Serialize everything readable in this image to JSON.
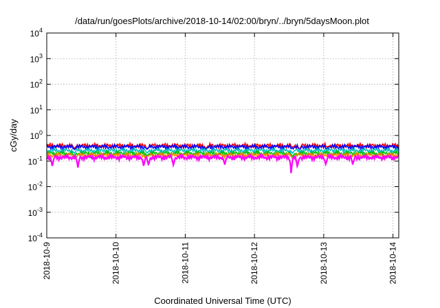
{
  "chart_data": {
    "type": "line",
    "title": "/data/run/goesPlots/archive/2018-10-14/02:00/bryn/../bryn/5daysMoon.plot",
    "xlabel": "Coordinated Universal Time (UTC)",
    "ylabel": "cGy/day",
    "yscale": "log",
    "ylim": [
      0.0001,
      10000
    ],
    "y_ticks": [
      {
        "base": "10",
        "exp": "-4",
        "value": 0.0001
      },
      {
        "base": "10",
        "exp": "-3",
        "value": 0.001
      },
      {
        "base": "10",
        "exp": "-2",
        "value": 0.01
      },
      {
        "base": "10",
        "exp": "-1",
        "value": 0.1
      },
      {
        "base": "10",
        "exp": "0",
        "value": 1
      },
      {
        "base": "10",
        "exp": "1",
        "value": 10
      },
      {
        "base": "10",
        "exp": "2",
        "value": 100
      },
      {
        "base": "10",
        "exp": "3",
        "value": 1000
      },
      {
        "base": "10",
        "exp": "4",
        "value": 10000
      }
    ],
    "xlim": [
      "2018-10-09T00:00",
      "2018-10-14T02:00"
    ],
    "x_ticks": [
      "2018-10-9",
      "2018-10-10",
      "2018-10-11",
      "2018-10-12",
      "2018-10-13",
      "2018-10-14"
    ],
    "grid": true,
    "legend": "none",
    "series": [
      {
        "color": "#ff0000",
        "level": 0.4,
        "spread": 0.06,
        "dips": [
          [
            0.4,
            0.3
          ],
          [
            1.45,
            0.3
          ],
          [
            2.3,
            0.3
          ],
          [
            3.55,
            0.35
          ],
          [
            3.65,
            0.28
          ],
          [
            4.05,
            0.35
          ]
        ]
      },
      {
        "color": "#0000ff",
        "level": 0.36,
        "spread": 0.05,
        "dips": [
          [
            0.4,
            0.28
          ],
          [
            1.45,
            0.28
          ],
          [
            2.3,
            0.28
          ],
          [
            3.55,
            0.32
          ],
          [
            3.65,
            0.26
          ],
          [
            4.05,
            0.32
          ]
        ]
      },
      {
        "color": "#00bfbf",
        "level": 0.26,
        "spread": 0.04,
        "dips": [
          [
            0.4,
            0.2
          ],
          [
            1.45,
            0.2
          ],
          [
            3.55,
            0.2
          ]
        ]
      },
      {
        "color": "#00c000",
        "level": 0.2,
        "spread": 0.03,
        "dips": [
          [
            0.4,
            0.16
          ],
          [
            1.45,
            0.16
          ],
          [
            3.55,
            0.15
          ]
        ]
      },
      {
        "color": "#ff8000",
        "level": 0.17,
        "spread": 0.02,
        "dips": [
          [
            0.4,
            0.14
          ],
          [
            1.45,
            0.14
          ],
          [
            3.55,
            0.12
          ]
        ]
      },
      {
        "color": "#ff00ff",
        "level": 0.14,
        "spread": 0.02,
        "dips": [
          [
            0.08,
            0.06
          ],
          [
            0.45,
            0.055
          ],
          [
            1.4,
            0.06
          ],
          [
            1.47,
            0.065
          ],
          [
            1.83,
            0.065
          ],
          [
            2.57,
            0.07
          ],
          [
            3.53,
            0.03
          ],
          [
            3.62,
            0.055
          ],
          [
            4.03,
            0.07
          ],
          [
            4.42,
            0.07
          ]
        ]
      }
    ]
  }
}
